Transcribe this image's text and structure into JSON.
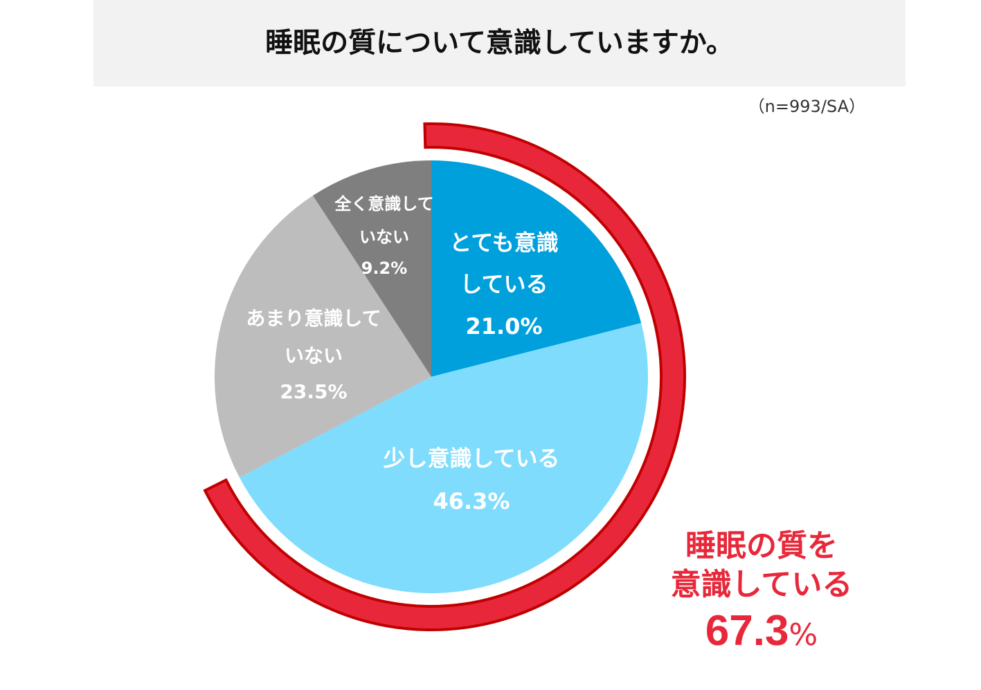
{
  "header": {
    "title": "睡眠の質について意識していますか。"
  },
  "sample_note": "（n=993/SA）",
  "summary": {
    "line1": "睡眠の質を",
    "line2": "意識している",
    "value": "67.3",
    "unit": "%"
  },
  "colors": {
    "very_conscious": "#00a0dc",
    "somewhat_conscious": "#7fdcfc",
    "not_much": "#bdbdbd",
    "not_at_all": "#7f7f7f",
    "summary_arc": "#e8283a",
    "summary_arc_border": "#c00000"
  },
  "chart_data": {
    "type": "pie",
    "title": "睡眠の質について意識していますか。",
    "start_angle": "12 o'clock",
    "direction": "clockwise",
    "slices": [
      {
        "label_lines": [
          "とても意識",
          "している"
        ],
        "value": 21.0,
        "value_label": "21.0%",
        "color": "#00a0dc"
      },
      {
        "label_lines": [
          "少し意識している"
        ],
        "value": 46.3,
        "value_label": "46.3%",
        "color": "#7fdcfc"
      },
      {
        "label_lines": [
          "あまり意識して",
          "いない"
        ],
        "value": 23.5,
        "value_label": "23.5%",
        "color": "#bdbdbd"
      },
      {
        "label_lines": [
          "全く意識して",
          "いない"
        ],
        "value": 9.2,
        "value_label": "9.2%",
        "color": "#7f7f7f"
      }
    ],
    "highlight": {
      "covers_slices": [
        0,
        1
      ],
      "label": "睡眠の質を意識している",
      "value": 67.3,
      "value_label": "67.3%"
    }
  }
}
